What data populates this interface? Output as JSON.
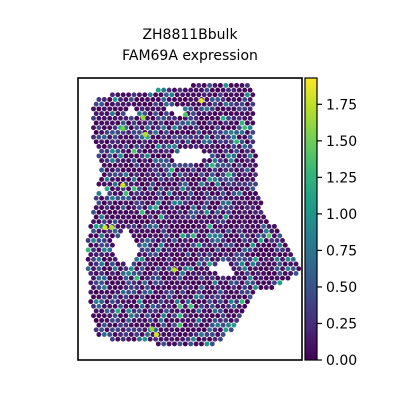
{
  "chart_data": {
    "type": "scatter",
    "title_line1": "ZH8811Bbulk",
    "title_line2": "FAM69A expression",
    "xlabel": "",
    "ylabel": "",
    "colormap": "viridis",
    "colorbar": {
      "range": [
        0.0,
        1.93
      ],
      "ticks": [
        0.0,
        0.25,
        0.5,
        0.75,
        1.0,
        1.25,
        1.5,
        1.75
      ],
      "tick_labels": [
        "0.00",
        "0.25",
        "0.50",
        "0.75",
        "1.00",
        "1.25",
        "1.50",
        "1.75"
      ]
    },
    "highlight_spots": [
      {
        "x": 0.55,
        "y": 0.92,
        "value": 1.85
      },
      {
        "x": 0.3,
        "y": 0.8,
        "value": 1.7
      },
      {
        "x": 0.2,
        "y": 0.62,
        "value": 1.8
      },
      {
        "x": 0.12,
        "y": 0.47,
        "value": 1.8
      },
      {
        "x": 0.15,
        "y": 0.47,
        "value": 1.7
      },
      {
        "x": 0.43,
        "y": 0.32,
        "value": 1.7
      },
      {
        "x": 0.29,
        "y": 0.86,
        "value": 1.6
      },
      {
        "x": 0.35,
        "y": 0.09,
        "value": 1.8
      },
      {
        "x": 0.33,
        "y": 0.11,
        "value": 1.6
      },
      {
        "x": 0.48,
        "y": 0.87,
        "value": 1.4
      },
      {
        "x": 0.2,
        "y": 0.82,
        "value": 1.5
      }
    ],
    "legend": "none",
    "grid": false,
    "axes_ticks": false
  },
  "colors": {
    "background": "#ffffff",
    "frame": "#000000",
    "cmap_stops": [
      "#440154",
      "#482878",
      "#3e4989",
      "#31688e",
      "#26828e",
      "#1f9e89",
      "#35b779",
      "#6ece58",
      "#b5de2b",
      "#fde725"
    ]
  }
}
